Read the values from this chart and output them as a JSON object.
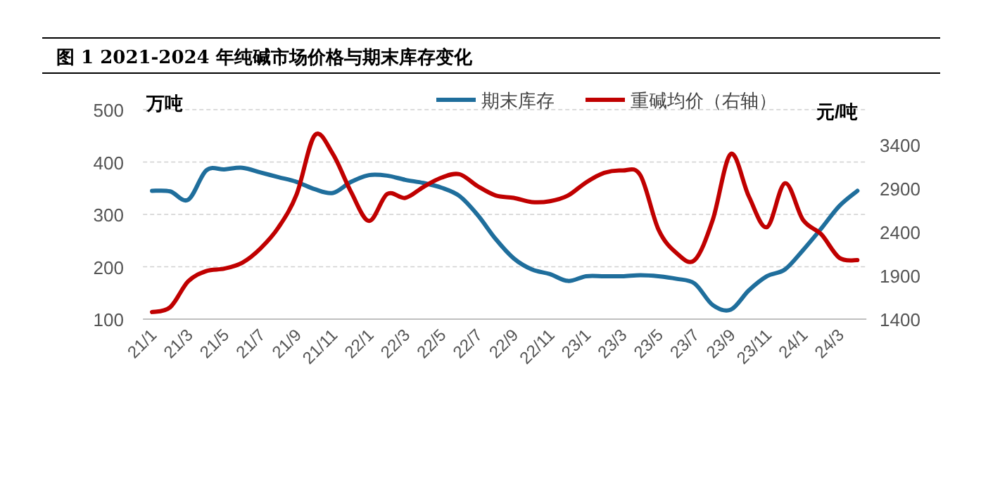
{
  "chart_data": {
    "type": "line",
    "title": "图 1 2021-2024 年纯碱市场价格与期末库存变化",
    "ylabel": "万吨",
    "y2label": "元/吨",
    "categories": [
      "21/1",
      null,
      "21/3",
      null,
      "21/5",
      null,
      "21/7",
      null,
      "21/9",
      null,
      "21/11",
      null,
      "22/1",
      null,
      "22/3",
      null,
      "22/5",
      null,
      "22/7",
      null,
      "22/9",
      null,
      "22/11",
      null,
      "23/1",
      null,
      "23/3",
      null,
      "23/5",
      null,
      "23/7",
      null,
      "23/9",
      null,
      "23/11",
      null,
      "24/1",
      null,
      "24/3",
      null
    ],
    "series": [
      {
        "name": "期末库存",
        "color": "#1f6e9c",
        "values": [
          345,
          344,
          328,
          384,
          386,
          389,
          380,
          371,
          362,
          348,
          341,
          362,
          375,
          374,
          366,
          360,
          351,
          335,
          299,
          253,
          216,
          195,
          186,
          173,
          182,
          182,
          182,
          184,
          182,
          177,
          168,
          127,
          118,
          155,
          182,
          195,
          232,
          273,
          316,
          345
        ]
      },
      {
        "name": "重碱均价（右轴）",
        "color": "#c00000",
        "axis": "y2",
        "values": [
          1481,
          1536,
          1833,
          1951,
          1979,
          2048,
          2211,
          2454,
          2833,
          3507,
          3292,
          2859,
          2525,
          2833,
          2789,
          2914,
          3021,
          3060,
          2924,
          2817,
          2789,
          2741,
          2751,
          2816,
          2967,
          3076,
          3103,
          3049,
          2427,
          2157,
          2076,
          2535,
          3292,
          2805,
          2454,
          2957,
          2535,
          2373,
          2103,
          2076
        ]
      }
    ],
    "ylim": [
      100,
      500
    ],
    "yticks": [
      100,
      200,
      300,
      400,
      500
    ],
    "y2lim": [
      1400,
      3800
    ],
    "y2ticks": [
      1400,
      1900,
      2400,
      2900,
      3400
    ],
    "grid": "y",
    "legend": "top",
    "line_style": "solid",
    "marker": "none"
  }
}
